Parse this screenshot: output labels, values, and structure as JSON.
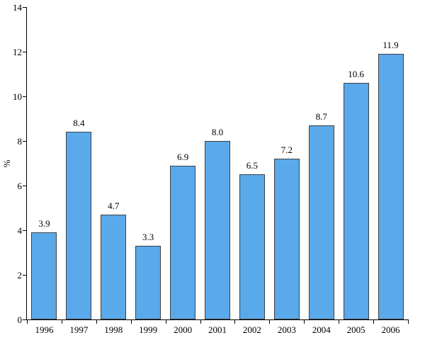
{
  "chart_data": {
    "type": "bar",
    "title": "",
    "categories": [
      "1996",
      "1997",
      "1998",
      "1999",
      "2000",
      "2001",
      "2002",
      "2003",
      "2004",
      "2005",
      "2006"
    ],
    "values": [
      3.9,
      8.4,
      4.7,
      3.3,
      6.9,
      8.0,
      6.5,
      7.2,
      8.7,
      10.6,
      11.9
    ],
    "value_labels": [
      "3.9",
      "8.4",
      "4.7",
      "3.3",
      "6.9",
      "8.0",
      "6.5",
      "7.2",
      "8.7",
      "10.6",
      "11.9"
    ],
    "xlabel": "",
    "ylabel": "%",
    "ylim": [
      0,
      14
    ],
    "yticks": [
      0,
      2,
      4,
      6,
      8,
      10,
      12,
      14
    ],
    "grid": false,
    "legend": false,
    "colors": {
      "bar_fill": "#5AA9EA",
      "bar_border": "#404040",
      "axis": "#000000",
      "background": "#FFFFFF",
      "text": "#000000"
    }
  }
}
